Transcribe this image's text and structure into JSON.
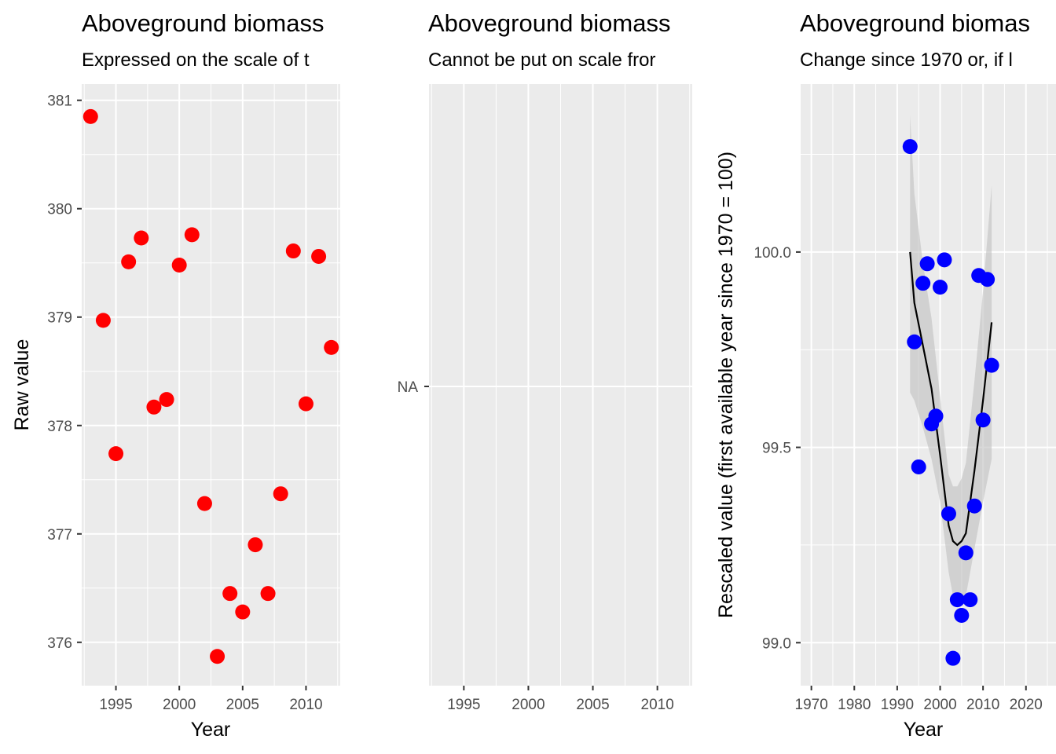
{
  "colors": {
    "panel_bg": "#ebebeb",
    "grid_major": "#ffffff",
    "raw_points": "#ff0000",
    "rescaled_points": "#0000ff",
    "trend_line": "#000000",
    "ribbon": "#bfbfbf"
  },
  "chart_data": [
    {
      "type": "scatter",
      "title": "Aboveground biomass",
      "subtitle": "Expressed on the scale of t",
      "xlabel": "Year",
      "ylabel": "Raw value",
      "xlim": [
        1992.3,
        2012.7
      ],
      "ylim": [
        375.6,
        381.15
      ],
      "xticks": [
        1995,
        2000,
        2005,
        2010
      ],
      "yticks": [
        376,
        377,
        378,
        379,
        380,
        381
      ],
      "grid": true,
      "series": [
        {
          "x": [
            1993,
            1994,
            1995,
            1996,
            1997,
            1998,
            1999,
            2000,
            2001,
            2002,
            2003,
            2004,
            2005,
            2006,
            2007,
            2008,
            2009,
            2010,
            2011,
            2012
          ],
          "y": [
            380.85,
            378.97,
            377.74,
            379.51,
            379.73,
            378.17,
            378.24,
            379.48,
            379.76,
            377.28,
            375.87,
            376.45,
            376.28,
            376.9,
            376.45,
            377.37,
            379.61,
            378.2,
            379.56,
            378.72
          ]
        }
      ]
    },
    {
      "type": "scatter",
      "title": "Aboveground biomass",
      "subtitle": "Cannot be put on scale fror",
      "xlabel": "",
      "ylabel": "",
      "xlim": [
        1992.3,
        2012.7
      ],
      "xticks": [
        1995,
        2000,
        2005,
        2010
      ],
      "ytick_labels": [
        "NA"
      ],
      "grid": true,
      "series": []
    },
    {
      "type": "scatter",
      "title": "Aboveground biomas",
      "subtitle": "Change since 1970 or, if l",
      "xlabel": "Year",
      "ylabel": "Rescaled value (first available year since 1970 = 100)",
      "xlim": [
        1967.5,
        2027
      ],
      "ylim": [
        98.89,
        100.43
      ],
      "xticks": [
        1970,
        1980,
        1990,
        2000,
        2010,
        2020
      ],
      "yticks": [
        99.0,
        99.5,
        100.0
      ],
      "ytick_labels": [
        "99.0",
        "99.5",
        "100.0"
      ],
      "grid": true,
      "series": [
        {
          "x": [
            1993,
            1994,
            1995,
            1996,
            1997,
            1998,
            1999,
            2000,
            2001,
            2002,
            2003,
            2004,
            2005,
            2006,
            2007,
            2008,
            2009,
            2010,
            2011,
            2012
          ],
          "y": [
            100.27,
            99.77,
            99.45,
            99.92,
            99.97,
            99.56,
            99.58,
            99.91,
            99.98,
            99.33,
            98.96,
            99.11,
            99.07,
            99.23,
            99.11,
            99.35,
            99.94,
            99.57,
            99.93,
            99.71
          ]
        }
      ],
      "trend": {
        "x": [
          1993,
          1994,
          1996,
          1998,
          2000,
          2002,
          2003,
          2004,
          2005,
          2006,
          2008,
          2010,
          2012
        ],
        "y": [
          100.0,
          99.87,
          99.76,
          99.65,
          99.48,
          99.3,
          99.26,
          99.25,
          99.26,
          99.28,
          99.44,
          99.62,
          99.82
        ],
        "lower": [
          99.64,
          99.62,
          99.55,
          99.47,
          99.36,
          99.18,
          99.12,
          99.1,
          99.1,
          99.12,
          99.24,
          99.36,
          99.47
        ],
        "upper": [
          100.35,
          100.15,
          99.97,
          99.83,
          99.63,
          99.43,
          99.4,
          99.4,
          99.42,
          99.46,
          99.67,
          99.9,
          100.17
        ]
      }
    }
  ]
}
